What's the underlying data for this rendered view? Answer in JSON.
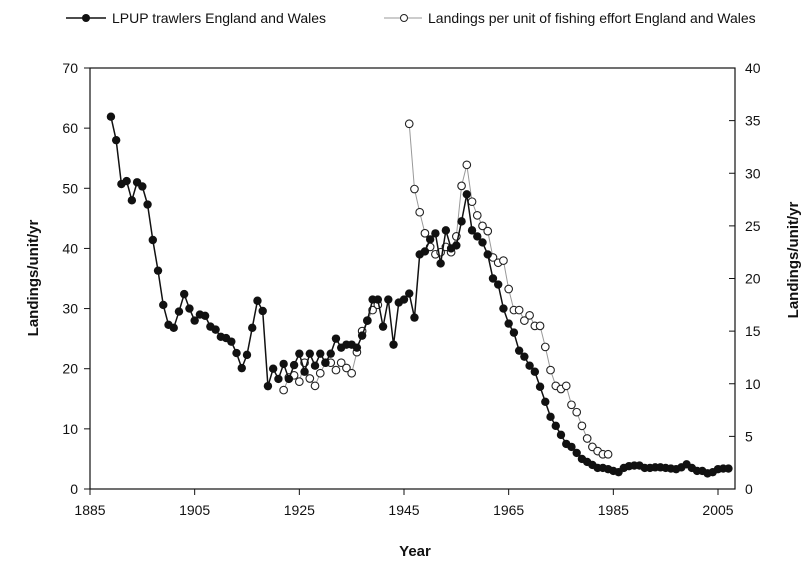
{
  "chart_data": {
    "type": "line",
    "xlabel": "Year",
    "ylabel": "Landings/unit/yr",
    "y2label": "Landings/unit/yr",
    "xlim": [
      1885,
      2008
    ],
    "ylim": [
      0,
      70
    ],
    "y2lim": [
      0,
      40
    ],
    "xticks": [
      1885,
      1905,
      1925,
      1945,
      1965,
      1985,
      2005
    ],
    "yticks": [
      0,
      10,
      20,
      30,
      40,
      50,
      60,
      70
    ],
    "y2ticks": [
      0,
      5,
      10,
      15,
      20,
      25,
      30,
      35,
      40
    ],
    "legend_position": "top",
    "series": [
      {
        "name": "LPUP trawlers England and Wales",
        "axis": "left",
        "marker": "filled-circle",
        "color": "#111111",
        "x": [
          1889,
          1890,
          1891,
          1892,
          1893,
          1894,
          1895,
          1896,
          1897,
          1898,
          1899,
          1900,
          1901,
          1902,
          1903,
          1904,
          1905,
          1906,
          1907,
          1908,
          1909,
          1910,
          1911,
          1912,
          1913,
          1914,
          1915,
          1916,
          1917,
          1918,
          1919,
          1920,
          1921,
          1922,
          1923,
          1924,
          1925,
          1926,
          1927,
          1928,
          1929,
          1930,
          1931,
          1932,
          1933,
          1934,
          1935,
          1936,
          1937,
          1938,
          1939,
          1940,
          1941,
          1942,
          1943,
          1944,
          1945,
          1946,
          1947,
          1948,
          1949,
          1950,
          1951,
          1952,
          1953,
          1954,
          1955,
          1956,
          1957,
          1958,
          1959,
          1960,
          1961,
          1962,
          1963,
          1964,
          1965,
          1966,
          1967,
          1968,
          1969,
          1970,
          1971,
          1972,
          1973,
          1974,
          1975,
          1976,
          1977,
          1978,
          1979,
          1980,
          1981,
          1982,
          1983,
          1984,
          1985,
          1986,
          1987,
          1988,
          1989,
          1990,
          1991,
          1992,
          1993,
          1994,
          1995,
          1996,
          1997,
          1998,
          1999,
          2000,
          2001,
          2002,
          2003,
          2004,
          2005,
          2006,
          2007
        ],
        "y": [
          61.9,
          58,
          50.7,
          51.2,
          48,
          51,
          50.3,
          47.3,
          41.4,
          36.3,
          30.6,
          27.3,
          26.8,
          29.5,
          32.4,
          30,
          28,
          29,
          28.8,
          27,
          26.5,
          25.3,
          25.1,
          24.5,
          22.6,
          20.1,
          22.3,
          26.8,
          31.3,
          29.6,
          17.1,
          20,
          18.3,
          20.8,
          18.3,
          20.6,
          22.5,
          19.5,
          22.5,
          20.5,
          22.5,
          21,
          22.5,
          25,
          23.5,
          24,
          24,
          23.5,
          25.5,
          28,
          31.5,
          31.5,
          27,
          31.5,
          24,
          31,
          31.5,
          32.5,
          28.5,
          39,
          39.5,
          41.5,
          42.5,
          37.5,
          43,
          40,
          40.5,
          44.5,
          49,
          43,
          42,
          41,
          39,
          35,
          34,
          30,
          27.5,
          26,
          23,
          22,
          20.5,
          19.5,
          17,
          14.5,
          12,
          10.5,
          9,
          7.5,
          7,
          6,
          5,
          4.5,
          4,
          3.5,
          3.5,
          3.3,
          3,
          2.8,
          3.5,
          3.8,
          3.9,
          3.9,
          3.5,
          3.5,
          3.6,
          3.6,
          3.5,
          3.4,
          3.3,
          3.6,
          4.1,
          3.5,
          3,
          3,
          2.6,
          2.8,
          3.3,
          3.4,
          3.4
        ]
      },
      {
        "name": "Landings per unit of fishing effort England and Wales",
        "axis": "right",
        "marker": "open-circle",
        "color": "#999999",
        "x": [
          1922,
          1923,
          1924,
          1925,
          1926,
          1927,
          1928,
          1929,
          1930,
          1931,
          1932,
          1933,
          1934,
          1935,
          1936,
          1937,
          1938,
          1939,
          1940,
          1946,
          1947,
          1948,
          1949,
          1950,
          1951,
          1952,
          1953,
          1954,
          1955,
          1956,
          1957,
          1958,
          1959,
          1960,
          1961,
          1962,
          1963,
          1964,
          1965,
          1966,
          1967,
          1968,
          1969,
          1970,
          1971,
          1972,
          1973,
          1974,
          1975,
          1976,
          1977,
          1978,
          1979,
          1980,
          1981,
          1982,
          1983,
          1984
        ],
        "y": [
          9.4,
          10.6,
          10.8,
          10.2,
          12,
          10.5,
          9.8,
          11,
          12,
          12,
          11.3,
          12,
          11.5,
          11,
          13,
          15,
          16,
          17,
          17.5,
          34.7,
          28.5,
          26.3,
          24.3,
          23,
          22.3,
          22.5,
          23,
          22.5,
          24,
          28.8,
          30.8,
          27.3,
          26,
          25,
          24.5,
          22,
          21.5,
          21.7,
          19,
          17,
          17,
          16,
          16.5,
          15.5,
          15.5,
          13.5,
          11.3,
          9.8,
          9.5,
          9.8,
          8,
          7.3,
          6,
          4.8,
          4,
          3.6,
          3.3,
          3.3
        ]
      }
    ]
  }
}
